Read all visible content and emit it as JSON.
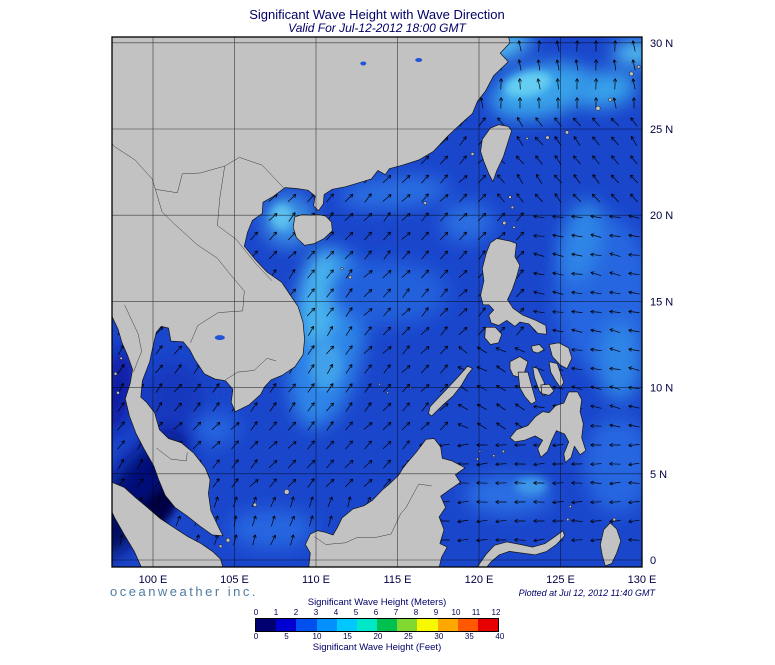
{
  "title": "Significant Wave Height with Wave Direction",
  "subtitle": "Valid For Jul-12-2012 18:00 GMT",
  "branding": "oceanweather inc.",
  "plotted_at": "Plotted at Jul 12, 2012 11:40 GMT",
  "map": {
    "lat_labels": [
      "30 N",
      "25 N",
      "20 N",
      "15 N",
      "10 N",
      "5 N",
      "0"
    ],
    "lon_labels": [
      "100 E",
      "105 E",
      "110 E",
      "115 E",
      "120 E",
      "125 E",
      "130 E"
    ]
  },
  "legend": {
    "meters_label": "Significant Wave Height (Meters)",
    "feet_label": "Significant Wave Height (Feet)",
    "meters_ticks": [
      0,
      1,
      2,
      3,
      4,
      5,
      6,
      7,
      8,
      9,
      10,
      11,
      12
    ],
    "feet_ticks": [
      0,
      5,
      10,
      15,
      20,
      25,
      30,
      35,
      40
    ],
    "colors": [
      "#000070",
      "#0000d0",
      "#0050f0",
      "#0090ff",
      "#00c8ff",
      "#00e8c8",
      "#00c050",
      "#80d830",
      "#f8f800",
      "#ffa800",
      "#ff5800",
      "#e80000"
    ]
  },
  "colors": {
    "ocean_base": "#1a46cc",
    "land": "#c2c2c2",
    "coastline": "#141414",
    "arrow": "#000000",
    "grid": "#000000",
    "axis_text": "#000042",
    "title_text": "#000066",
    "branding_text": "#4f7ba3"
  },
  "chart_data": {
    "type": "heatmap",
    "title": "Significant Wave Height with Wave Direction",
    "valid_time": "Jul-12-2012 18:00 GMT",
    "plotted_time": "Jul 12, 2012 11:40 GMT",
    "x_axis_ticks_deg_e": [
      100,
      105,
      110,
      115,
      120,
      125,
      130
    ],
    "y_axis_ticks_deg_n": [
      0,
      5,
      10,
      15,
      20,
      25,
      30
    ],
    "colorbar_meters": [
      0,
      1,
      2,
      3,
      4,
      5,
      6,
      7,
      8,
      9,
      10,
      11,
      12
    ],
    "colorbar_feet": [
      0,
      5,
      10,
      15,
      20,
      25,
      30,
      35,
      40
    ],
    "units": [
      "Meters",
      "Feet"
    ]
  }
}
